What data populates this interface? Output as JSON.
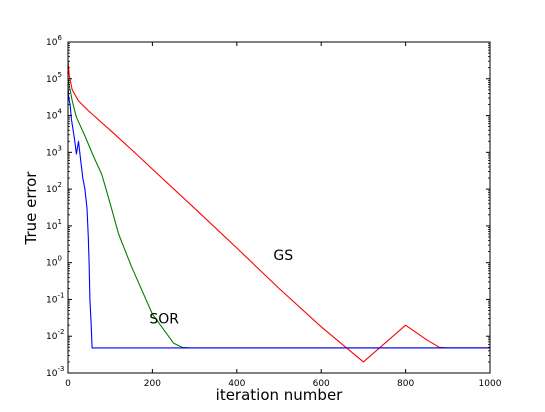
{
  "chart_data": {
    "type": "line",
    "title": "",
    "xlabel": "iteration number",
    "ylabel": "True error",
    "xlim": [
      0,
      1000
    ],
    "ylim": [
      0.001,
      1000000
    ],
    "yscale": "log",
    "grid": false,
    "x_ticks": [
      {
        "value": 0,
        "label": "0"
      },
      {
        "value": 200,
        "label": "200"
      },
      {
        "value": 400,
        "label": "400"
      },
      {
        "value": 600,
        "label": "600"
      },
      {
        "value": 800,
        "label": "800"
      },
      {
        "value": 1000,
        "label": "1000"
      }
    ],
    "y_ticks": [
      {
        "value": 0.001,
        "base": "10",
        "exp": "-3"
      },
      {
        "value": 0.01,
        "base": "10",
        "exp": "-2"
      },
      {
        "value": 0.1,
        "base": "10",
        "exp": "-1"
      },
      {
        "value": 1,
        "base": "10",
        "exp": "0"
      },
      {
        "value": 10,
        "base": "10",
        "exp": "1"
      },
      {
        "value": 100,
        "base": "10",
        "exp": "2"
      },
      {
        "value": 1000,
        "base": "10",
        "exp": "3"
      },
      {
        "value": 10000,
        "base": "10",
        "exp": "4"
      },
      {
        "value": 100000,
        "base": "10",
        "exp": "5"
      },
      {
        "value": 1000000,
        "base": "10",
        "exp": "6"
      }
    ],
    "series": [
      {
        "name": "GS",
        "color": "#ff0000",
        "x": [
          0,
          3,
          10,
          25,
          50,
          100,
          150,
          200,
          300,
          400,
          500,
          600,
          700,
          800,
          850,
          880,
          900,
          950,
          1000
        ],
        "y": [
          300000,
          120000,
          50000,
          25000,
          13000,
          4000,
          1200,
          350,
          30,
          2.5,
          0.2,
          0.018,
          0.002,
          0.02,
          0.008,
          0.005,
          0.0048,
          0.0048,
          0.0048
        ]
      },
      {
        "name": "SOR",
        "color": "#008000",
        "x": [
          0,
          5,
          10,
          20,
          40,
          60,
          80,
          100,
          120,
          150,
          200,
          250,
          270,
          290,
          300,
          400,
          500,
          600,
          700,
          800,
          900,
          1000
        ],
        "y": [
          100000,
          50000,
          25000,
          9000,
          2800,
          800,
          250,
          40,
          6,
          0.8,
          0.04,
          0.0065,
          0.005,
          0.0048,
          0.0048,
          0.0048,
          0.0048,
          0.0048,
          0.0048,
          0.0048,
          0.0048,
          0.0048
        ]
      },
      {
        "name": "",
        "color": "#0000ff",
        "x": [
          0,
          2,
          5,
          8,
          12,
          15,
          20,
          25,
          30,
          35,
          40,
          45,
          48,
          50,
          52,
          55,
          57,
          60,
          100,
          200,
          400,
          600,
          800,
          1000
        ],
        "y": [
          60000,
          30000,
          20000,
          8000,
          4000,
          2500,
          900,
          2000,
          600,
          200,
          100,
          30,
          5,
          1,
          0.1,
          0.02,
          0.0048,
          0.0048,
          0.0048,
          0.0048,
          0.0048,
          0.0048,
          0.0048,
          0.0048
        ]
      }
    ],
    "annotations": [
      {
        "text": "GS",
        "x": 510,
        "y": 1.2
      },
      {
        "text": "SOR",
        "x": 228,
        "y": 0.022
      }
    ]
  }
}
